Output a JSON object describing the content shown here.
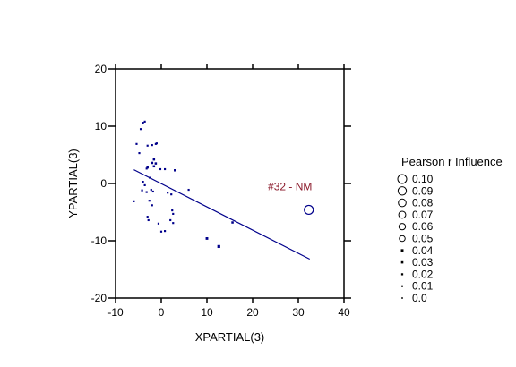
{
  "chart_data": {
    "type": "scatter",
    "xlabel": "XPARTIAL(3)",
    "ylabel": "YPARTIAL(3)",
    "xlim": [
      -10,
      40
    ],
    "ylim": [
      -20,
      20
    ],
    "xticks": [
      -10,
      0,
      10,
      20,
      30,
      40
    ],
    "yticks": [
      -20,
      -10,
      0,
      10,
      20
    ],
    "xtick_labels": [
      "-10",
      "0",
      "10",
      "20",
      "30",
      "40"
    ],
    "ytick_labels": [
      "-20",
      "-10",
      "0",
      "10",
      "20"
    ],
    "grid": false,
    "point_color": "#00008b",
    "line_color": "#00008b",
    "annotation_color": "#8b1a2b",
    "points": [
      {
        "x": -3.6,
        "y": 10.8,
        "i": 0.01
      },
      {
        "x": -4.0,
        "y": 10.6,
        "i": 0.01
      },
      {
        "x": -4.5,
        "y": 9.5,
        "i": 0.01
      },
      {
        "x": -5.4,
        "y": 6.9,
        "i": 0.01
      },
      {
        "x": -3.0,
        "y": 6.6,
        "i": 0.01
      },
      {
        "x": -2.0,
        "y": 6.7,
        "i": 0.01
      },
      {
        "x": -1.0,
        "y": 7.0,
        "i": 0.01
      },
      {
        "x": -1.2,
        "y": 6.9,
        "i": 0.01
      },
      {
        "x": -4.8,
        "y": 5.3,
        "i": 0.01
      },
      {
        "x": -1.6,
        "y": 4.2,
        "i": 0.02
      },
      {
        "x": -1.2,
        "y": 3.5,
        "i": 0.02
      },
      {
        "x": -2.0,
        "y": 3.6,
        "i": 0.02
      },
      {
        "x": -1.6,
        "y": 3.0,
        "i": 0.02
      },
      {
        "x": -3.0,
        "y": 2.8,
        "i": 0.02
      },
      {
        "x": -3.2,
        "y": 2.6,
        "i": 0.01
      },
      {
        "x": -0.2,
        "y": 2.5,
        "i": 0.01
      },
      {
        "x": 0.8,
        "y": 2.5,
        "i": 0.01
      },
      {
        "x": 3.0,
        "y": 2.3,
        "i": 0.02
      },
      {
        "x": -2.5,
        "y": 1.0,
        "i": 0.01
      },
      {
        "x": -4.0,
        "y": 0.3,
        "i": 0.01
      },
      {
        "x": -3.6,
        "y": -0.3,
        "i": 0.01
      },
      {
        "x": -4.2,
        "y": -1.2,
        "i": 0.01
      },
      {
        "x": -2.2,
        "y": -1.1,
        "i": 0.01
      },
      {
        "x": -1.8,
        "y": -1.4,
        "i": 0.01
      },
      {
        "x": -3.2,
        "y": -1.5,
        "i": 0.01
      },
      {
        "x": 1.4,
        "y": -1.6,
        "i": 0.01
      },
      {
        "x": 2.2,
        "y": -1.9,
        "i": 0.01
      },
      {
        "x": 6.0,
        "y": -1.1,
        "i": 0.01
      },
      {
        "x": -6.0,
        "y": -3.1,
        "i": 0.01
      },
      {
        "x": -2.6,
        "y": -3.0,
        "i": 0.01
      },
      {
        "x": -2.0,
        "y": -3.8,
        "i": 0.01
      },
      {
        "x": 2.4,
        "y": -4.7,
        "i": 0.01
      },
      {
        "x": 2.6,
        "y": -5.3,
        "i": 0.01
      },
      {
        "x": -3.0,
        "y": -5.8,
        "i": 0.01
      },
      {
        "x": -2.8,
        "y": -6.4,
        "i": 0.01
      },
      {
        "x": 2.0,
        "y": -6.4,
        "i": 0.01
      },
      {
        "x": 2.6,
        "y": -6.9,
        "i": 0.01
      },
      {
        "x": -0.6,
        "y": -7.0,
        "i": 0.01
      },
      {
        "x": 0.0,
        "y": -8.4,
        "i": 0.01
      },
      {
        "x": 0.8,
        "y": -8.3,
        "i": 0.01
      },
      {
        "x": 15.6,
        "y": -6.8,
        "i": 0.02
      },
      {
        "x": 10.0,
        "y": -9.6,
        "i": 0.03
      },
      {
        "x": 12.6,
        "y": -11.0,
        "i": 0.04
      },
      {
        "x": 32.3,
        "y": -4.6,
        "i": 0.1
      }
    ],
    "regression_line": {
      "x": [
        -6.0,
        32.5
      ],
      "y": [
        2.4,
        -13.2
      ]
    },
    "annotation": {
      "text": "#32 - NM",
      "x": 32.3,
      "y": -4.6
    },
    "legend": {
      "title": "Pearson r Influence",
      "position": "right",
      "entries": [
        "0.10",
        "0.09",
        "0.08",
        "0.07",
        "0.06",
        "0.05",
        "0.04",
        "0.03",
        "0.02",
        "0.01",
        "0.0"
      ],
      "sizes": [
        0.1,
        0.09,
        0.08,
        0.07,
        0.06,
        0.05,
        0.04,
        0.03,
        0.02,
        0.01,
        0.0
      ]
    }
  }
}
